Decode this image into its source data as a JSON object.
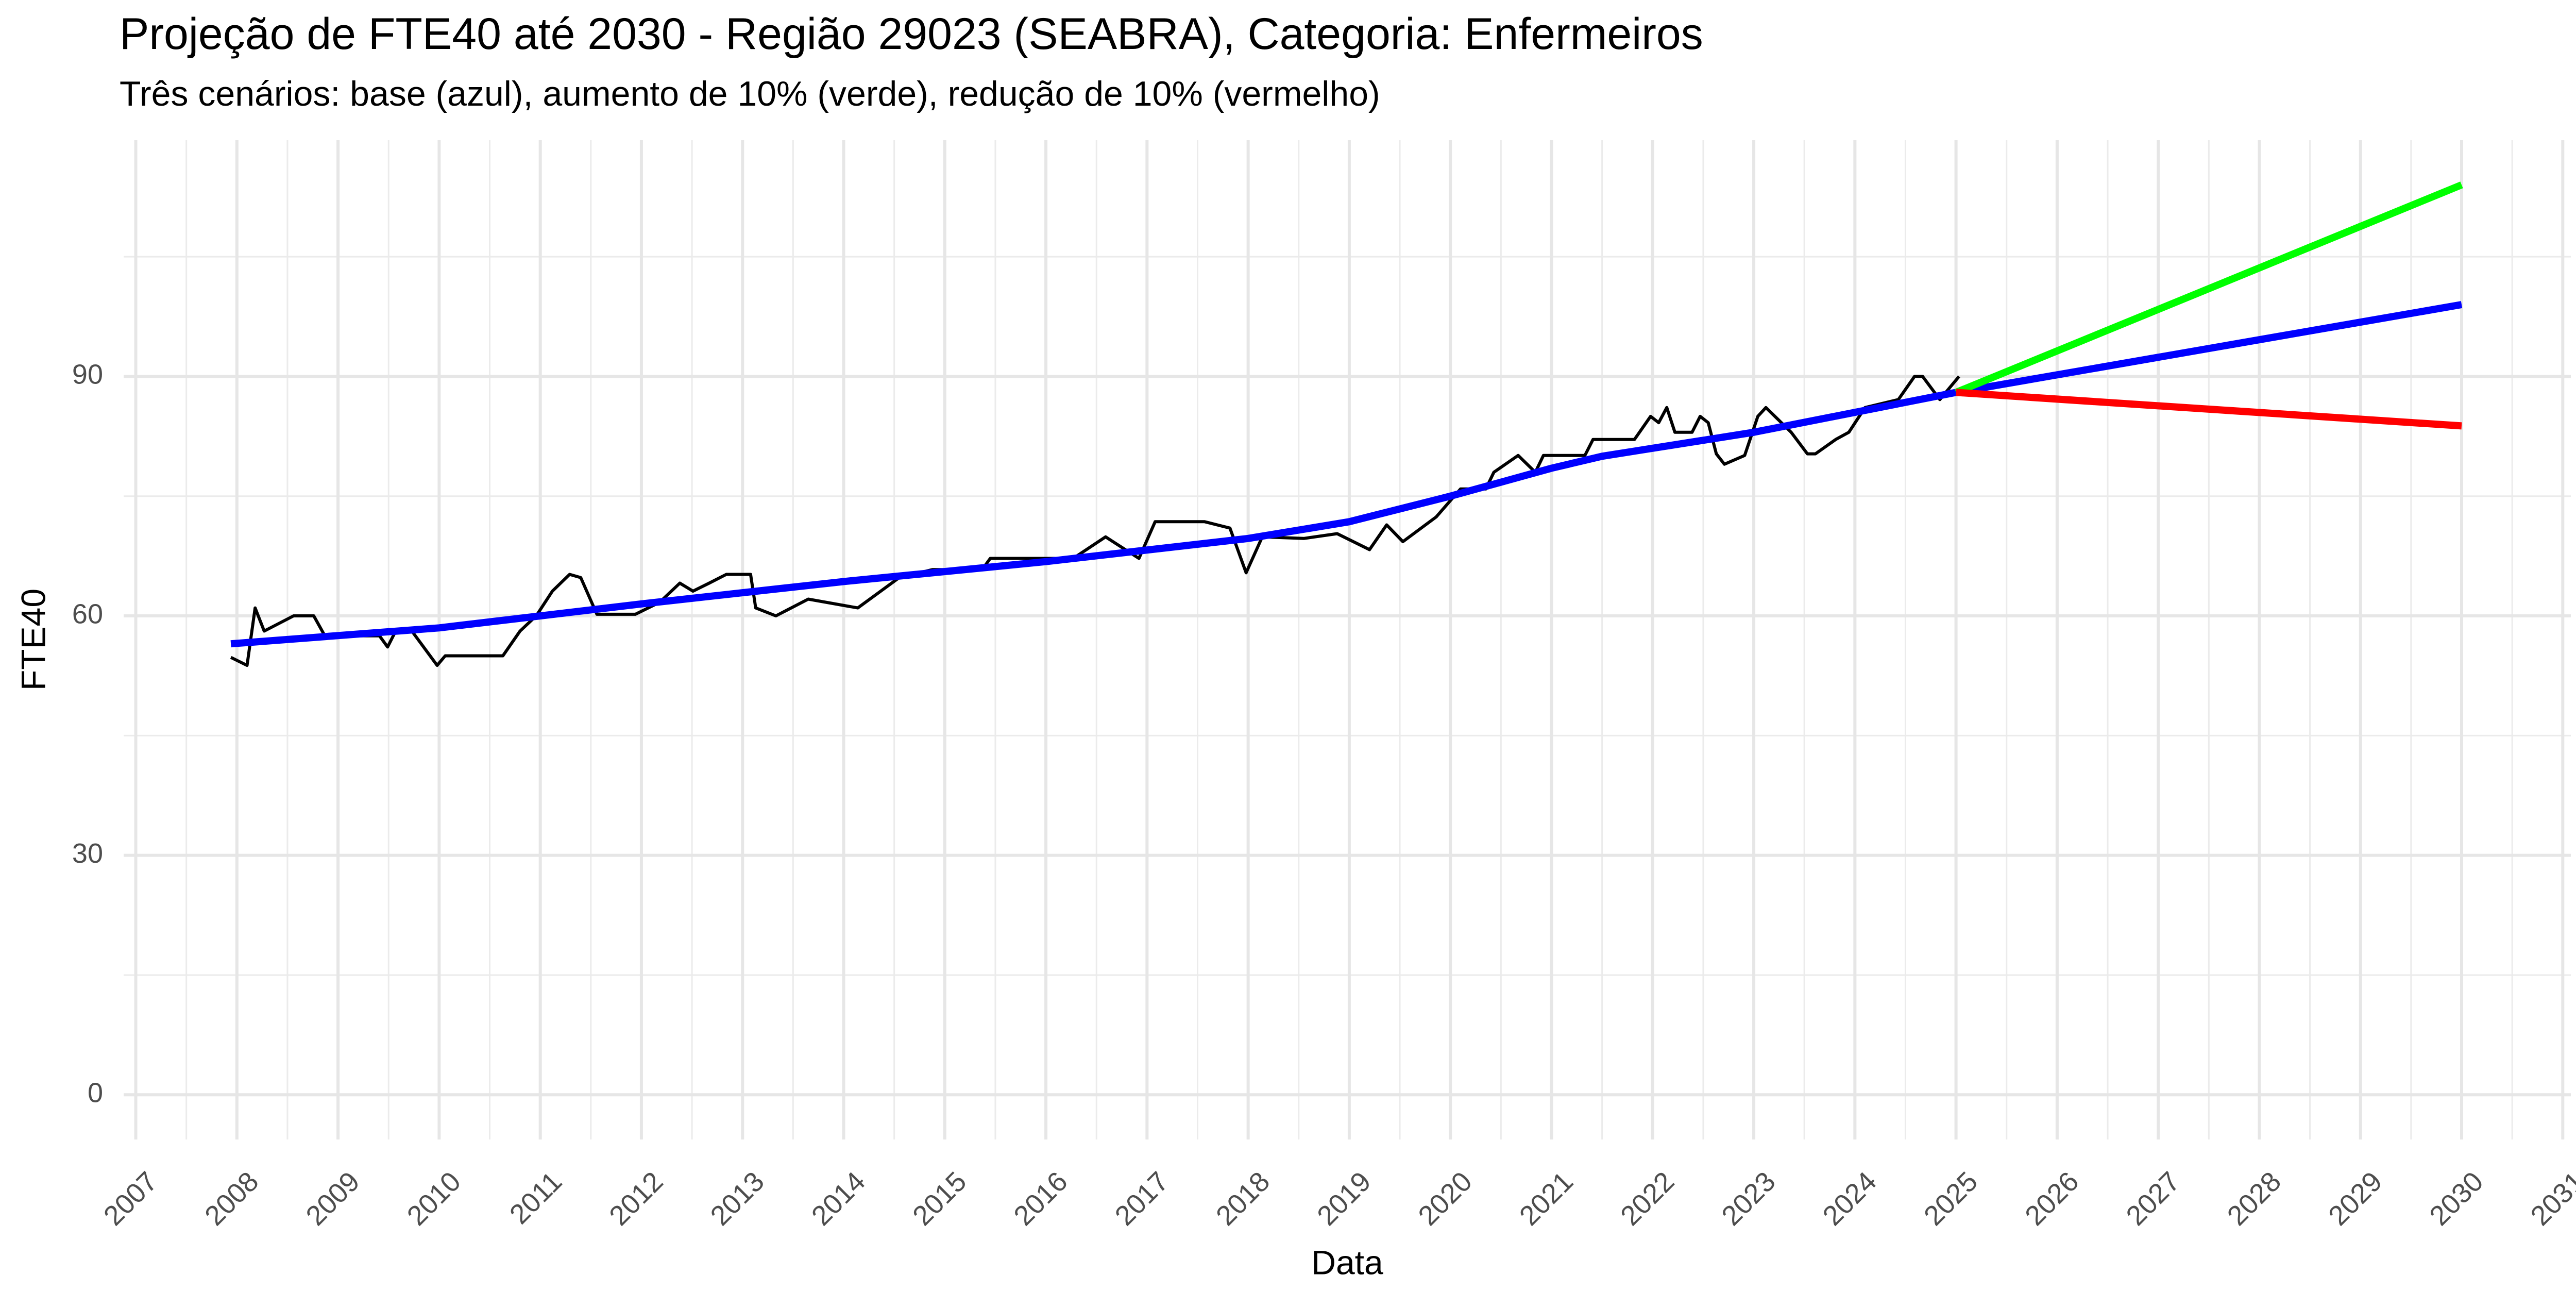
{
  "chart_data": {
    "type": "line",
    "title": "Projeção de FTE40 até 2030 - Região 29023 (SEABRA), Categoria: Enfermeiros",
    "subtitle": "Três cenários: base (azul), aumento de 10% (verde), redução de 10% (vermelho)",
    "x_label": "Data",
    "y_label": "FTE40",
    "xlim": [
      2006.88,
      2031.08
    ],
    "ylim": [
      -5.6,
      119.6
    ],
    "xticks": [
      2007,
      2008,
      2009,
      2010,
      2011,
      2012,
      2013,
      2014,
      2015,
      2016,
      2017,
      2018,
      2019,
      2020,
      2021,
      2022,
      2023,
      2024,
      2025,
      2026,
      2027,
      2028,
      2029,
      2030,
      2031
    ],
    "yticks": [
      0,
      30,
      60,
      90
    ],
    "grid": true,
    "series": [
      {
        "color": "#000000",
        "width": "thin",
        "x": [
          2007.94,
          2008.1,
          2008.18,
          2008.27,
          2008.56,
          2008.76,
          2008.87,
          2009.41,
          2009.49,
          2009.57,
          2009.73,
          2009.98,
          2010.06,
          2010.63,
          2010.8,
          2010.96,
          2011.12,
          2011.29,
          2011.4,
          2011.56,
          2011.94,
          2012.18,
          2012.38,
          2012.51,
          2012.67,
          2012.84,
          2013.08,
          2013.13,
          2013.33,
          2013.65,
          2014.14,
          2014.55,
          2014.88,
          2015.37,
          2015.45,
          2015.61,
          2016.27,
          2016.59,
          2016.92,
          2017.08,
          2017.57,
          2017.82,
          2017.98,
          2018.14,
          2018.55,
          2018.88,
          2019.2,
          2019.37,
          2019.53,
          2019.86,
          2020.1,
          2020.35,
          2020.43,
          2020.67,
          2020.84,
          2020.92,
          2021.33,
          2021.41,
          2021.82,
          2021.98,
          2022.06,
          2022.14,
          2022.22,
          2022.39,
          2022.47,
          2022.55,
          2022.63,
          2022.71,
          2022.91,
          2023.04,
          2023.12,
          2023.37,
          2023.53,
          2023.61,
          2023.81,
          2023.94,
          2024.1,
          2024.43,
          2024.59,
          2024.67,
          2024.84,
          2025.03
        ],
        "values": [
          54.8,
          53.8,
          61.0,
          58.1,
          60.0,
          60.0,
          57.5,
          57.5,
          56.1,
          58.1,
          58.1,
          53.8,
          55.0,
          55.0,
          58.1,
          60.0,
          63.1,
          65.2,
          64.8,
          60.2,
          60.2,
          61.7,
          64.1,
          63.1,
          64.1,
          65.2,
          65.2,
          61.0,
          60.0,
          62.1,
          61.0,
          64.8,
          65.8,
          65.8,
          67.2,
          67.2,
          67.2,
          69.9,
          67.2,
          71.8,
          71.8,
          71.0,
          65.4,
          69.9,
          69.7,
          70.3,
          68.3,
          71.4,
          69.3,
          72.4,
          75.9,
          75.9,
          78.0,
          80.1,
          78.0,
          80.1,
          80.1,
          82.1,
          82.1,
          85.0,
          84.2,
          86.1,
          83.0,
          83.0,
          85.0,
          84.2,
          80.3,
          79.0,
          80.1,
          85.0,
          86.1,
          83.0,
          80.3,
          80.3,
          82.1,
          83.0,
          86.1,
          87.1,
          90.0,
          90.0,
          87.1,
          90.0
        ]
      },
      {
        "color": "#0000ff",
        "width": "thick",
        "x": [
          2007.94,
          2010,
          2012,
          2014,
          2016,
          2018,
          2019,
          2020,
          2021,
          2021.5,
          2023,
          2025,
          2030
        ],
        "values": [
          56.5,
          58.5,
          61.5,
          64.3,
          66.8,
          69.7,
          71.8,
          75,
          78.5,
          80,
          83,
          88,
          99
        ]
      },
      {
        "color": "#00ff00",
        "width": "thick",
        "x": [
          2025,
          2030
        ],
        "values": [
          88,
          114
        ]
      },
      {
        "color": "#ff0000",
        "width": "thick",
        "x": [
          2025,
          2030
        ],
        "values": [
          88,
          83.8
        ]
      }
    ]
  }
}
